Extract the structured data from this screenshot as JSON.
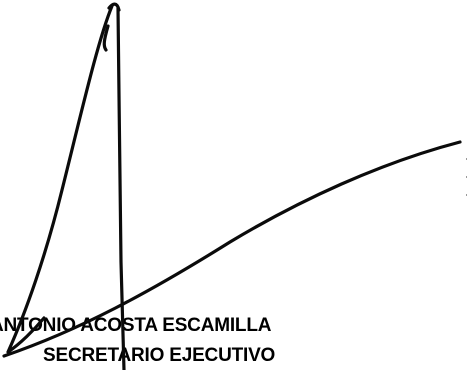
{
  "signer": {
    "name": "ANTONIO ACOSTA ESCAMILLA",
    "title": "SECRETARIO EJECUTIVO"
  },
  "colors": {
    "ink": "#0b0b0b",
    "text": "#000000",
    "background": "#ffffff"
  }
}
